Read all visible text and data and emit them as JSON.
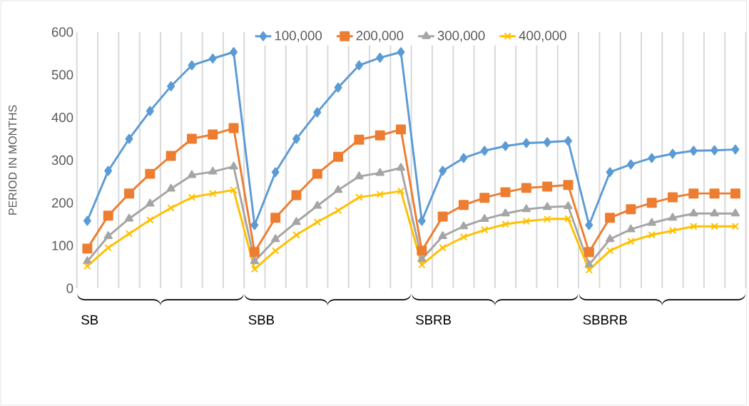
{
  "chart_data": {
    "type": "line",
    "ylabel": "PERIOD IN MONTHS",
    "categories": [
      null,
      null,
      null,
      null,
      null,
      null,
      null,
      null,
      null,
      null,
      null,
      null,
      null,
      null,
      null,
      null,
      null,
      null,
      null,
      null,
      null,
      null,
      null,
      null,
      null,
      null,
      null,
      null,
      null,
      null,
      null,
      null
    ],
    "series": [
      {
        "name": "100,000",
        "color": "#5b9bd5",
        "marker": "diamond",
        "values": [
          158,
          275,
          350,
          415,
          473,
          522,
          538,
          553,
          148,
          272,
          350,
          412,
          470,
          522,
          540,
          553,
          158,
          275,
          305,
          322,
          333,
          340,
          342,
          345,
          148,
          272,
          290,
          305,
          315,
          322,
          323,
          325
        ]
      },
      {
        "name": "200,000",
        "color": "#ed7d31",
        "marker": "square",
        "values": [
          93,
          170,
          222,
          268,
          310,
          350,
          360,
          375,
          85,
          165,
          218,
          268,
          308,
          348,
          358,
          372,
          88,
          168,
          195,
          212,
          225,
          235,
          238,
          242,
          85,
          165,
          185,
          200,
          213,
          222,
          222,
          222
        ]
      },
      {
        "name": "300,000",
        "color": "#a5a5a5",
        "marker": "triangle",
        "values": [
          63,
          122,
          163,
          198,
          233,
          265,
          273,
          285,
          63,
          115,
          155,
          193,
          230,
          262,
          270,
          282,
          68,
          122,
          145,
          162,
          175,
          185,
          190,
          192,
          55,
          115,
          138,
          153,
          165,
          175,
          175,
          175
        ]
      },
      {
        "name": "400,000",
        "color": "#ffc000",
        "marker": "cross",
        "values": [
          52,
          95,
          128,
          160,
          188,
          213,
          222,
          230,
          45,
          88,
          125,
          155,
          182,
          213,
          220,
          228,
          55,
          95,
          120,
          137,
          150,
          157,
          162,
          163,
          43,
          88,
          110,
          125,
          135,
          145,
          145,
          145
        ]
      }
    ],
    "annotations": [
      "SB",
      "SBB",
      "SBRB",
      "SBBRB"
    ],
    "ylim": [
      0,
      600
    ],
    "yticks": [
      0,
      100,
      200,
      300,
      400,
      500,
      600
    ],
    "grid": "x",
    "legend": "top"
  }
}
